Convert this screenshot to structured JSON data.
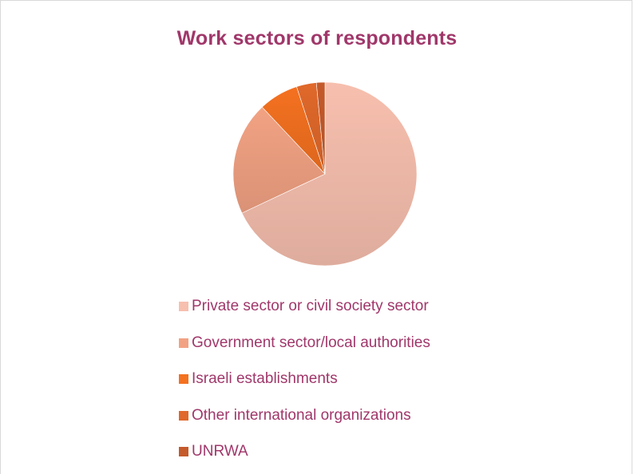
{
  "chart_data": {
    "type": "pie",
    "title": "Work sectors of respondents",
    "categories": [
      "Private sector or civil society sector",
      "Government sector/local authorities",
      "Israeli establishments",
      "Other international organizations",
      "UNRWA"
    ],
    "values": [
      68,
      20,
      7,
      3.5,
      1.5
    ],
    "colors": [
      "#f7bfae",
      "#f2a283",
      "#f47120",
      "#e0682a",
      "#c55a2b"
    ],
    "legend_position": "bottom",
    "start_angle_deg": 0,
    "direction": "clockwise"
  }
}
